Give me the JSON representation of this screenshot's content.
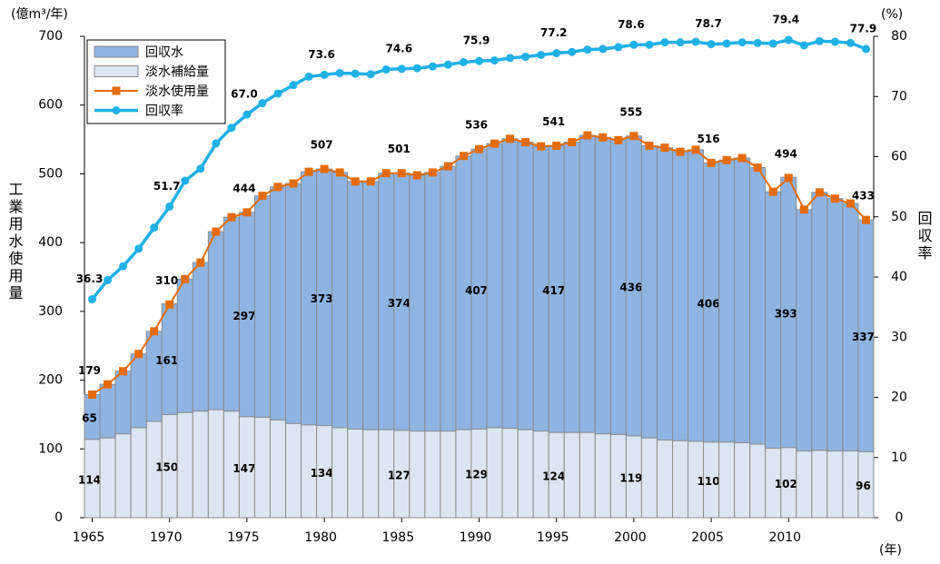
{
  "chart_data": {
    "type": "bar",
    "stacked": true,
    "y_label": "(億m³/年)",
    "y_title": "工業用水使用量",
    "y2_label": "(%)",
    "y2_title": "回収率",
    "x_label": "(年)",
    "categories": [
      1965,
      null,
      null,
      null,
      null,
      1970,
      null,
      null,
      null,
      null,
      1975,
      null,
      null,
      null,
      null,
      1980,
      null,
      null,
      null,
      null,
      1985,
      null,
      null,
      null,
      null,
      1990,
      null,
      null,
      null,
      null,
      1995,
      null,
      null,
      null,
      null,
      2000,
      null,
      null,
      null,
      null,
      2005,
      null,
      null,
      null,
      null,
      2010,
      null,
      null,
      null,
      null,
      null
    ],
    "ylim": [
      0,
      700
    ],
    "yticks": [
      0,
      100,
      200,
      300,
      400,
      500,
      600,
      700
    ],
    "y2lim": [
      0,
      80
    ],
    "y2ticks": [
      0,
      10,
      20,
      30,
      40,
      50,
      60,
      70,
      80
    ],
    "legend": "top-left",
    "series": [
      {
        "name": "回収水",
        "type": "bar",
        "color": "#8eb4e3",
        "values": [
          65,
          78,
          91,
          107,
          131,
          161,
          194,
          216,
          259,
          282,
          297,
          322,
          339,
          349,
          368,
          373,
          371,
          360,
          361,
          373,
          374,
          372,
          376,
          385,
          398,
          407,
          413,
          421,
          418,
          414,
          417,
          422,
          432,
          431,
          428,
          436,
          425,
          425,
          420,
          424,
          406,
          410,
          414,
          402,
          373,
          393,
          351,
          375,
          367,
          360,
          337
        ],
        "value_labels": [
          "65",
          null,
          null,
          null,
          null,
          "161",
          null,
          null,
          null,
          null,
          "297",
          null,
          null,
          null,
          null,
          "373",
          null,
          null,
          null,
          null,
          "374",
          null,
          null,
          null,
          null,
          "407",
          null,
          null,
          null,
          null,
          "417",
          null,
          null,
          null,
          null,
          "436",
          null,
          null,
          null,
          null,
          "406",
          null,
          null,
          null,
          null,
          "393",
          null,
          null,
          null,
          null,
          "337"
        ]
      },
      {
        "name": "淡水補給量",
        "type": "bar",
        "color": "#dce6f2",
        "values": [
          114,
          116,
          122,
          131,
          140,
          150,
          153,
          155,
          157,
          155,
          147,
          146,
          142,
          137,
          135,
          134,
          131,
          129,
          128,
          128,
          127,
          126,
          126,
          126,
          128,
          129,
          131,
          130,
          128,
          126,
          124,
          124,
          124,
          122,
          121,
          119,
          116,
          113,
          112,
          111,
          110,
          110,
          109,
          107,
          101,
          102,
          97,
          98,
          97,
          97,
          96
        ],
        "value_labels": [
          "114",
          null,
          null,
          null,
          null,
          "150",
          null,
          null,
          null,
          null,
          "147",
          null,
          null,
          null,
          null,
          "134",
          null,
          null,
          null,
          null,
          "127",
          null,
          null,
          null,
          null,
          "129",
          null,
          null,
          null,
          null,
          "124",
          null,
          null,
          null,
          null,
          "119",
          null,
          null,
          null,
          null,
          "110",
          null,
          null,
          null,
          null,
          "102",
          null,
          null,
          null,
          null,
          "96"
        ]
      },
      {
        "name": "淡水使用量",
        "type": "line",
        "marker": "square",
        "color": "#e36c09",
        "values": [
          179,
          194,
          213,
          238,
          271,
          310,
          347,
          371,
          416,
          437,
          444,
          468,
          481,
          486,
          503,
          507,
          502,
          489,
          489,
          501,
          501,
          498,
          502,
          511,
          526,
          536,
          544,
          551,
          546,
          540,
          541,
          546,
          556,
          553,
          549,
          555,
          541,
          538,
          532,
          535,
          516,
          520,
          523,
          509,
          474,
          494,
          448,
          473,
          464,
          457,
          433
        ],
        "value_labels": [
          "179",
          null,
          null,
          null,
          null,
          "310",
          null,
          null,
          null,
          null,
          "444",
          null,
          null,
          null,
          null,
          "507",
          null,
          null,
          null,
          null,
          "501",
          null,
          null,
          null,
          null,
          "536",
          null,
          null,
          null,
          null,
          "541",
          null,
          null,
          null,
          null,
          "555",
          null,
          null,
          null,
          null,
          "516",
          null,
          null,
          null,
          null,
          "494",
          null,
          null,
          null,
          null,
          "433"
        ]
      },
      {
        "name": "回収率",
        "type": "line",
        "marker": "circle",
        "color": "#1fb1e6",
        "axis": "y2",
        "values": [
          36.3,
          39.5,
          41.8,
          44.7,
          48.2,
          51.7,
          56.0,
          58.0,
          62.2,
          64.8,
          67.0,
          68.9,
          70.5,
          71.9,
          73.3,
          73.6,
          73.9,
          73.8,
          73.7,
          74.5,
          74.6,
          74.7,
          75.0,
          75.3,
          75.7,
          75.9,
          76.0,
          76.4,
          76.6,
          76.9,
          77.2,
          77.4,
          77.8,
          77.9,
          78.2,
          78.6,
          78.6,
          79.0,
          79.0,
          79.1,
          78.7,
          78.8,
          79.0,
          78.9,
          78.8,
          79.4,
          78.5,
          79.2,
          79.1,
          78.9,
          77.9
        ],
        "value_labels": [
          "36.3",
          null,
          null,
          null,
          null,
          "51.7",
          null,
          null,
          null,
          null,
          "67.0",
          null,
          null,
          null,
          null,
          "73.6",
          null,
          null,
          null,
          null,
          "74.6",
          null,
          null,
          null,
          null,
          "75.9",
          null,
          null,
          null,
          null,
          "77.2",
          null,
          null,
          null,
          null,
          "78.6",
          null,
          null,
          null,
          null,
          "78.7",
          null,
          null,
          null,
          null,
          "79.4",
          null,
          null,
          null,
          null,
          "77.9"
        ]
      }
    ]
  }
}
